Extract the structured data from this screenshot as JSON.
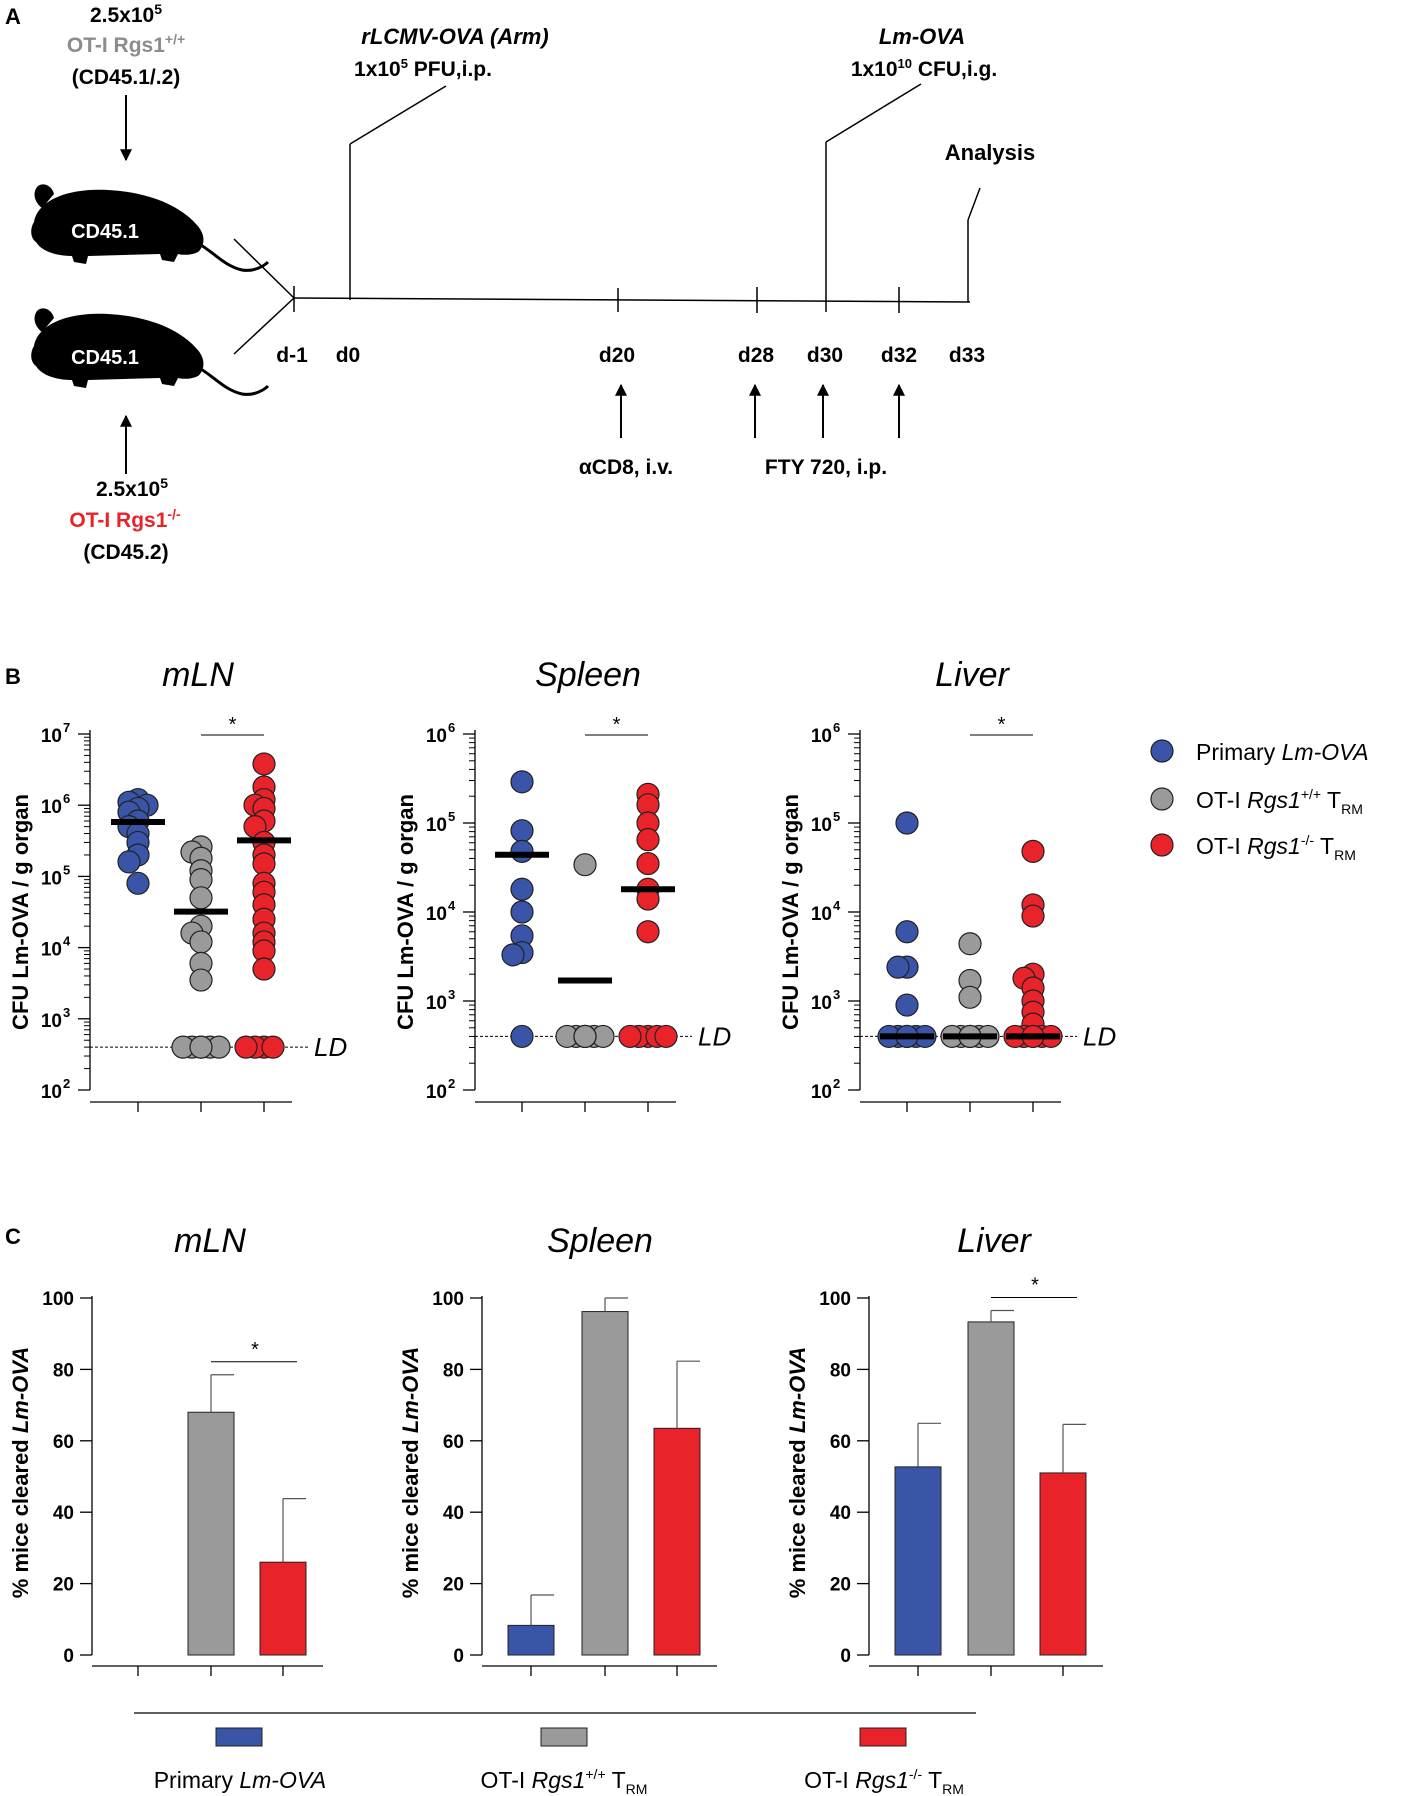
{
  "panel_labels": {
    "a": "A",
    "b": "B",
    "c": "C"
  },
  "colors": {
    "primary": "#3a55a8",
    "wt": "#9a9a9a",
    "ko": "#e8232a",
    "ko_text": "#e8232a",
    "wt_text": "#8c8c8c"
  },
  "panel_a": {
    "donor_wt": {
      "dose": "2.5x10",
      "dose_exp": "5",
      "name": "OT-I Rgs1",
      "sup": "+/+",
      "cd": "(CD45.1/.2)"
    },
    "donor_ko": {
      "dose": "2.5x10",
      "dose_exp": "5",
      "name": "OT-I Rgs1",
      "sup": "-/-",
      "cd": "(CD45.2)"
    },
    "mouse_label_top": "CD45.1",
    "mouse_label_bottom": "CD45.1",
    "infection1": {
      "name": "rLCMV-OVA (Arm)",
      "dose_a": "1x10",
      "dose_exp": "5",
      "dose_b": " PFU,i.p."
    },
    "infection2": {
      "name": "Lm-OVA",
      "dose_a": "1x10",
      "dose_exp": "10",
      "dose_b": " CFU,i.g."
    },
    "analysis": "Analysis",
    "days": [
      "d-1",
      "d0",
      "d20",
      "d28",
      "d30",
      "d32",
      "d33"
    ],
    "treatment1": "αCD8, i.v.",
    "treatment2": "FTY 720, i.p."
  },
  "legend": {
    "primary": {
      "plain": "Primary ",
      "italic": "Lm-OVA"
    },
    "wt": {
      "pre": "OT-I ",
      "italic": "Rgs1",
      "sup": "+/+",
      "post": " T",
      "sub": "RM"
    },
    "ko": {
      "pre": "OT-I ",
      "italic": "Rgs1",
      "sup": "-/-",
      "post": " T",
      "sub": "RM"
    }
  },
  "chart_data": [
    {
      "type": "scatter",
      "panel": "B",
      "title": "mLN",
      "ylabel": "CFU Lm-OVA / g organ",
      "yscale": "log",
      "ylim": [
        100,
        10000000
      ],
      "ytick_labels": [
        "10",
        "10",
        "10",
        "10",
        "10",
        "10"
      ],
      "ytick_exps": [
        "2",
        "3",
        "4",
        "5",
        "6",
        "7"
      ],
      "detection_limit": 400,
      "ld_label": "LD",
      "significance": "*",
      "groups": [
        {
          "name": "Primary Lm-OVA",
          "mean": 580000,
          "values": [
            1200000,
            1100000,
            1000000,
            900000,
            800000,
            600000,
            500000,
            400000,
            300000,
            200000,
            160000,
            80000
          ]
        },
        {
          "name": "OT-I Rgs1+/+ TRM",
          "mean": 32000,
          "values": [
            260000,
            220000,
            180000,
            120000,
            90000,
            50000,
            20000,
            16000,
            12000,
            6000,
            3500,
            400,
            400,
            400,
            400,
            400,
            400
          ]
        },
        {
          "name": "OT-I Rgs1-/- TRM",
          "mean": 320000,
          "values": [
            3800000,
            1800000,
            1200000,
            1000000,
            900000,
            600000,
            500000,
            300000,
            200000,
            150000,
            80000,
            60000,
            40000,
            25000,
            16000,
            12000,
            9000,
            5000,
            400,
            400,
            400,
            400
          ]
        }
      ]
    },
    {
      "type": "scatter",
      "panel": "B",
      "title": "Spleen",
      "ylabel": "CFU Lm-OVA / g organ",
      "yscale": "log",
      "ylim": [
        100,
        1000000
      ],
      "ytick_labels": [
        "10",
        "10",
        "10",
        "10",
        "10"
      ],
      "ytick_exps": [
        "2",
        "3",
        "4",
        "5",
        "6"
      ],
      "detection_limit": 400,
      "ld_label": "LD",
      "significance": "*",
      "groups": [
        {
          "name": "Primary Lm-OVA",
          "mean": 44000,
          "values": [
            290000,
            82000,
            48000,
            18000,
            10000,
            5400,
            3500,
            3300,
            400
          ]
        },
        {
          "name": "OT-I Rgs1+/+ TRM",
          "mean": 1700,
          "values": [
            34000,
            400,
            400,
            400,
            400,
            400,
            400,
            400,
            400,
            400
          ]
        },
        {
          "name": "OT-I Rgs1-/- TRM",
          "mean": 18000,
          "values": [
            210000,
            160000,
            100000,
            65000,
            35000,
            18000,
            14000,
            6000,
            400,
            400,
            400,
            400,
            400
          ]
        }
      ]
    },
    {
      "type": "scatter",
      "panel": "B",
      "title": "Liver",
      "ylabel": "CFU Lm-OVA / g organ",
      "yscale": "log",
      "ylim": [
        100,
        1000000
      ],
      "ytick_labels": [
        "10",
        "10",
        "10",
        "10",
        "10"
      ],
      "ytick_exps": [
        "2",
        "3",
        "4",
        "5",
        "6"
      ],
      "detection_limit": 400,
      "ld_label": "LD",
      "significance": "*",
      "groups": [
        {
          "name": "Primary Lm-OVA",
          "mean": 400,
          "values": [
            100000,
            6000,
            2400,
            2400,
            900,
            400,
            400,
            400,
            400,
            400,
            400,
            400
          ]
        },
        {
          "name": "OT-I Rgs1+/+ TRM",
          "mean": 400,
          "values": [
            4400,
            1700,
            1100,
            400,
            400,
            400,
            400,
            400,
            400,
            400,
            400
          ]
        },
        {
          "name": "OT-I Rgs1-/- TRM",
          "mean": 400,
          "values": [
            48000,
            12000,
            9000,
            2000,
            1800,
            1400,
            1000,
            750,
            550,
            400,
            400,
            400,
            400,
            400,
            400
          ]
        }
      ]
    },
    {
      "type": "bar",
      "panel": "C",
      "title": "mLN",
      "ylabel_plain": "% mice cleared ",
      "ylabel_italic": "Lm-OVA",
      "ylim": [
        0,
        100
      ],
      "ytick_labels": [
        "0",
        "20",
        "40",
        "60",
        "80",
        "100"
      ],
      "categories": [
        "Primary Lm-OVA",
        "OT-I Rgs1+/+ TRM",
        "OT-I Rgs1-/- TRM"
      ],
      "values": [
        0,
        68,
        26
      ],
      "errors": [
        0,
        10.5,
        17.8
      ],
      "significance": "*"
    },
    {
      "type": "bar",
      "panel": "C",
      "title": "Spleen",
      "ylabel_plain": "% mice cleared ",
      "ylabel_italic": "Lm-OVA",
      "ylim": [
        0,
        100
      ],
      "ytick_labels": [
        "0",
        "20",
        "40",
        "60",
        "80",
        "100"
      ],
      "categories": [
        "Primary Lm-OVA",
        "OT-I Rgs1+/+ TRM",
        "OT-I Rgs1-/- TRM"
      ],
      "values": [
        8.3,
        96.2,
        63.5
      ],
      "errors": [
        8.5,
        3.8,
        18.8
      ],
      "significance": ""
    },
    {
      "type": "bar",
      "panel": "C",
      "title": "Liver",
      "ylabel_plain": "% mice cleared ",
      "ylabel_italic": "Lm-OVA",
      "ylim": [
        0,
        100
      ],
      "ytick_labels": [
        "0",
        "20",
        "40",
        "60",
        "80",
        "100"
      ],
      "categories": [
        "Primary Lm-OVA",
        "OT-I Rgs1+/+ TRM",
        "OT-I Rgs1-/- TRM"
      ],
      "values": [
        52.7,
        93.3,
        51
      ],
      "errors": [
        12.2,
        3.2,
        13.6
      ],
      "significance": "*"
    }
  ]
}
